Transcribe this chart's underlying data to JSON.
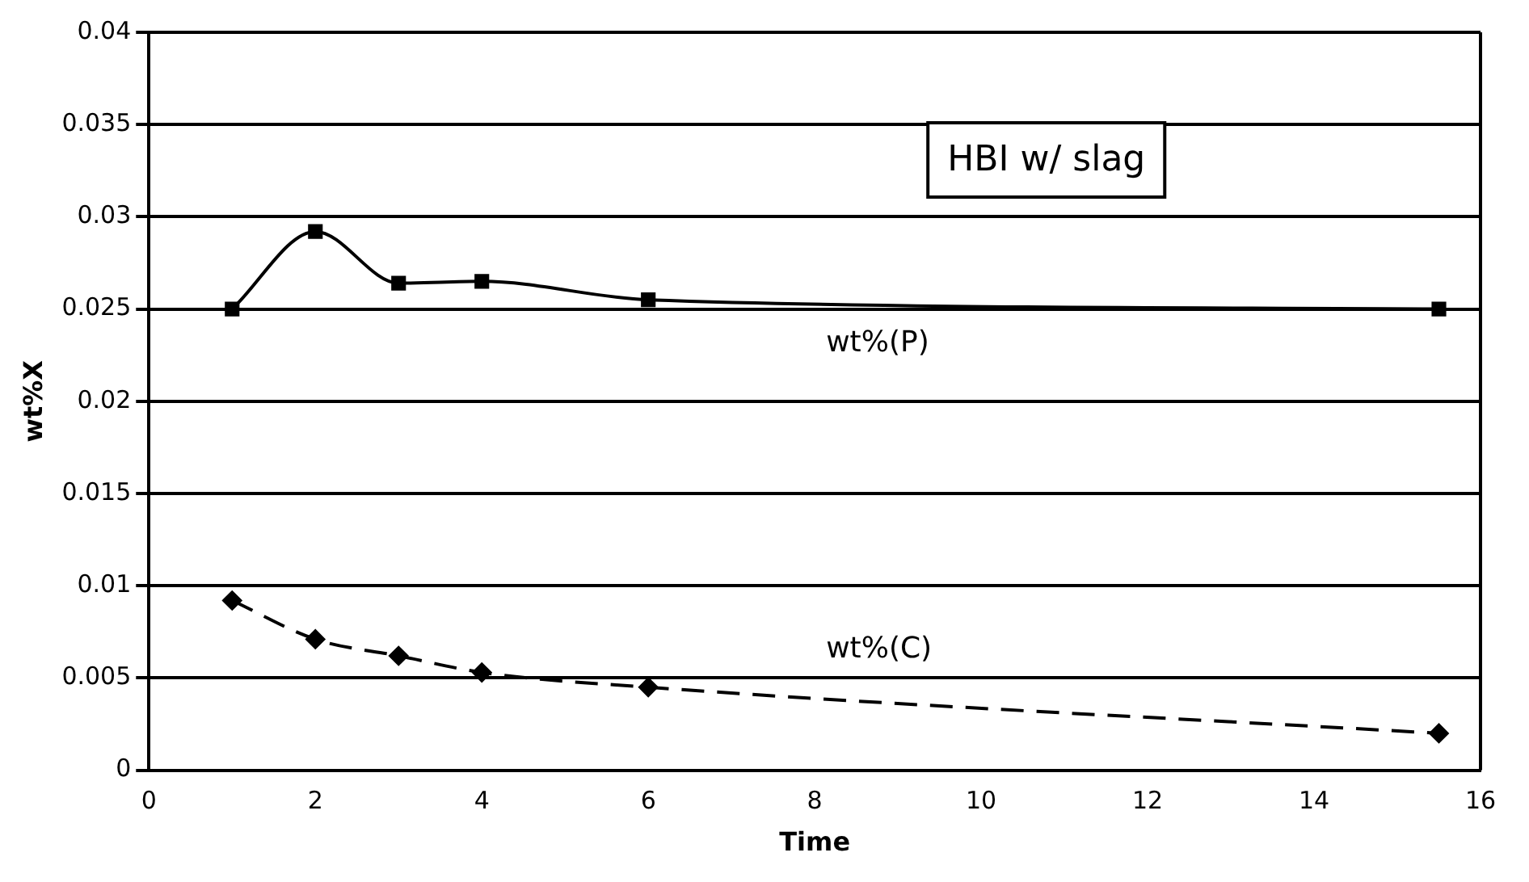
{
  "chart_data": {
    "type": "line",
    "title": "HBI w/ slag",
    "xlabel": "Time",
    "ylabel": "wt%X",
    "xlim": [
      0,
      16
    ],
    "xticks": [
      0,
      2,
      4,
      6,
      8,
      10,
      12,
      14,
      16
    ],
    "ylim": [
      0,
      0.04
    ],
    "yticks": [
      0,
      0.005,
      0.01,
      0.015,
      0.02,
      0.025,
      0.03,
      0.035,
      0.04
    ],
    "grid": "y",
    "series": [
      {
        "name": "wt%(P)",
        "color": "#000000",
        "marker": "square",
        "line_style": "solid",
        "x": [
          1,
          2,
          3,
          4,
          6,
          15.5
        ],
        "values": [
          0.025,
          0.0292,
          0.0264,
          0.0265,
          0.0255,
          0.025
        ]
      },
      {
        "name": "wt%(C)",
        "color": "#000000",
        "marker": "diamond",
        "line_style": "dashed",
        "x": [
          1,
          2,
          3,
          4,
          6,
          15.5
        ],
        "values": [
          0.0092,
          0.0071,
          0.0062,
          0.0053,
          0.0045,
          0.002
        ]
      }
    ]
  }
}
